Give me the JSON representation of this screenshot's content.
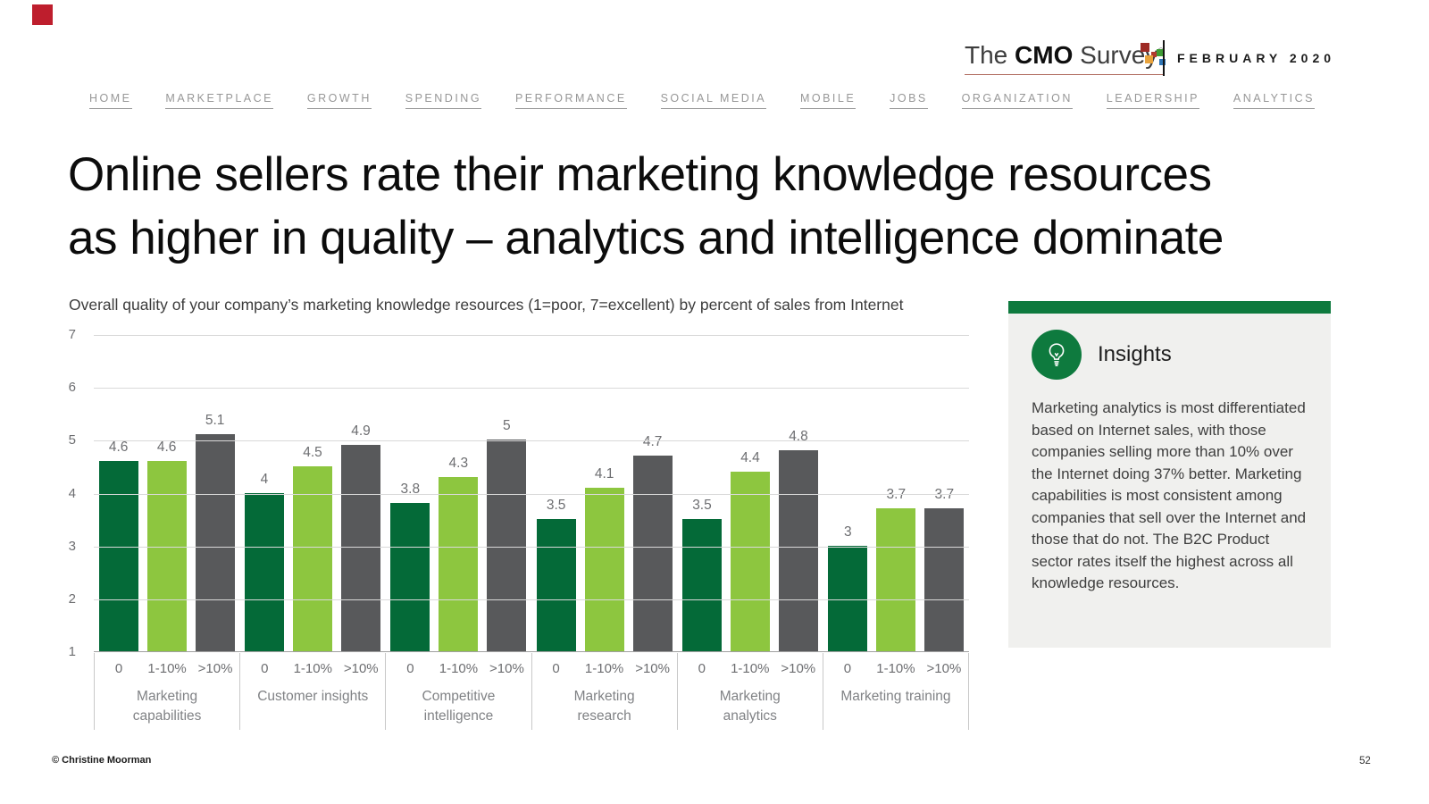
{
  "brand": {
    "mark_color": "#be1e2d",
    "logo": {
      "the": "The",
      "cmo": "CMO",
      "survey": "Survey",
      "reg": "®"
    },
    "logo_dot_colors": [
      "#9e2b25",
      "#b03a30",
      "#3f9c35",
      "#e8a33d",
      "#2e75b6"
    ],
    "edition": "FEBRUARY 2020"
  },
  "nav": {
    "items": [
      "HOME",
      "MARKETPLACE",
      "GROWTH",
      "SPENDING",
      "PERFORMANCE",
      "SOCIAL MEDIA",
      "MOBILE",
      "JOBS",
      "ORGANIZATION",
      "LEADERSHIP",
      "ANALYTICS"
    ]
  },
  "title": {
    "line1": "Online sellers rate their marketing knowledge resources",
    "line2": "as higher in quality – analytics and intelligence dominate"
  },
  "chart_data": {
    "type": "bar",
    "title": "Overall quality of your company’s marketing knowledge resources (1=poor, 7=excellent) by percent of sales from Internet",
    "categories": [
      "Marketing capabilities",
      "Customer insights",
      "Competitive intelligence",
      "Marketing research",
      "Marketing analytics",
      "Marketing training"
    ],
    "group_tick_labels": [
      "0",
      "1-10%",
      ">10%"
    ],
    "series": [
      {
        "name": "0",
        "color": "#046a38",
        "values": [
          4.6,
          4,
          3.8,
          3.5,
          3.5,
          3
        ]
      },
      {
        "name": "1-10%",
        "color": "#8dc63f",
        "values": [
          4.6,
          4.5,
          4.3,
          4.1,
          4.4,
          3.7
        ]
      },
      {
        "name": ">10%",
        "color": "#58595b",
        "values": [
          5.1,
          4.9,
          5,
          4.7,
          4.8,
          3.7
        ]
      }
    ],
    "ylim": [
      1,
      7
    ],
    "yticks": [
      1,
      2,
      3,
      4,
      5,
      6,
      7
    ],
    "grid": true,
    "legend_position": "none — series identified by 0 / 1-10% / >10% labels under each bar group"
  },
  "insights": {
    "heading": "Insights",
    "body": "Marketing analytics is most differentiated based on Internet sales, with those companies selling more than 10% over the Internet doing 37% better. Marketing capabilities is most consistent among companies that sell over the Internet and those that do not. The B2C Product sector rates itself the highest across all knowledge resources.",
    "accent_color": "#0e7a3e",
    "panel_bg": "#f0f0ee"
  },
  "footer": {
    "copyright": "© Christine Moorman",
    "page_number": "52"
  }
}
